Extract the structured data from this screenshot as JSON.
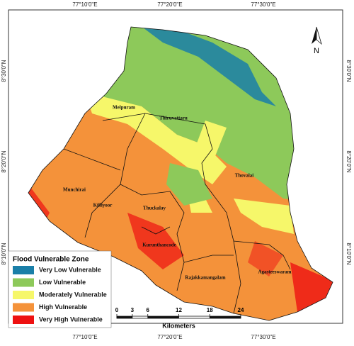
{
  "coordinates": {
    "top": [
      "77°10'0\"E",
      "77°20'0\"E",
      "77°30'0\"E"
    ],
    "bottom": [
      "77°10'0\"E",
      "77°20'0\"E",
      "77°30'0\"E"
    ],
    "left": [
      "8°30'0\"N",
      "8°20'0\"N",
      "8°10'0\"N"
    ],
    "right": [
      "8°30'0\"N",
      "8°20'0\"N",
      "8°10'0\"N"
    ]
  },
  "places": [
    "Melpuram",
    "Thiruvattaru",
    "Thovalai",
    "Munchirai",
    "Killiyoor",
    "Thuckalay",
    "Kurunthancode",
    "Rajakkamangalam",
    "Agasteeswaram"
  ],
  "legend": {
    "title": "Flood Vulnerable Zone",
    "items": [
      {
        "label": "Very Low Vulnerable",
        "color": "#1a7fa8"
      },
      {
        "label": "Low Vulnerable",
        "color": "#8dc95a"
      },
      {
        "label": "Moderately Vulnerable",
        "color": "#f6f76a"
      },
      {
        "label": "High Vulnerable",
        "color": "#f4923a"
      },
      {
        "label": "Very High Vulnerable",
        "color": "#ee1111"
      }
    ]
  },
  "scale_bar": {
    "ticks": [
      0,
      3,
      6,
      12,
      18,
      24
    ],
    "unit": "Kilometers"
  },
  "north": "N"
}
